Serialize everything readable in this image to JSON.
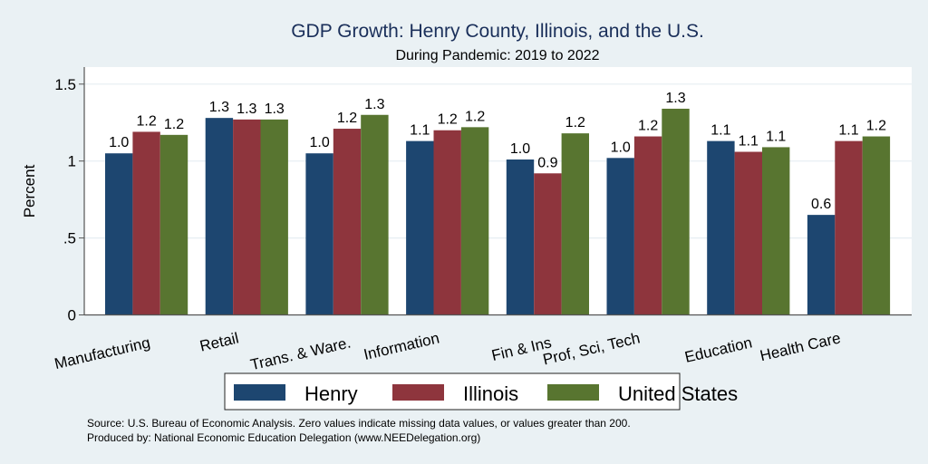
{
  "chart_data": {
    "type": "bar",
    "title": "GDP Growth: Henry County, Illinois, and the U.S.",
    "subtitle": "During Pandemic: 2019 to 2022",
    "xlabel": "",
    "ylabel": "Percent",
    "ylim": [
      0,
      1.6
    ],
    "yticks": [
      {
        "value": 0,
        "label": "0"
      },
      {
        "value": 0.5,
        "label": ".5"
      },
      {
        "value": 1,
        "label": "1"
      },
      {
        "value": 1.5,
        "label": "1.5"
      }
    ],
    "grid": true,
    "categories": [
      "Manufacturing",
      "Retail",
      "Trans. & Ware.",
      "Information",
      "Fin & Ins",
      "Prof, Sci, Tech",
      "Education",
      "Health Care"
    ],
    "series": [
      {
        "name": "Henry",
        "color": "#1d4670",
        "values": [
          1.05,
          1.28,
          1.05,
          1.13,
          1.01,
          1.02,
          1.13,
          0.65
        ],
        "labels": [
          "1.0",
          "1.3",
          "1.0",
          "1.1",
          "1.0",
          "1.0",
          "1.1",
          "0.6"
        ]
      },
      {
        "name": "Illinois",
        "color": "#8e353d",
        "values": [
          1.19,
          1.27,
          1.21,
          1.2,
          0.92,
          1.16,
          1.06,
          1.13
        ],
        "labels": [
          "1.2",
          "1.3",
          "1.2",
          "1.2",
          "0.9",
          "1.2",
          "1.1",
          "1.1"
        ]
      },
      {
        "name": "United States",
        "color": "#587530",
        "values": [
          1.17,
          1.27,
          1.3,
          1.22,
          1.18,
          1.34,
          1.09,
          1.16
        ],
        "labels": [
          "1.2",
          "1.3",
          "1.3",
          "1.2",
          "1.2",
          "1.3",
          "1.1",
          "1.2"
        ]
      }
    ],
    "legend": {
      "position": "bottom",
      "entries": [
        "Henry",
        "Illinois",
        "United States"
      ]
    },
    "notes": [
      "Source: U.S. Bureau of Economic Analysis. Zero values indicate missing data values, or values greater than 200.",
      "Produced by: National Economic Education Delegation (www.NEEDelegation.org)"
    ]
  }
}
